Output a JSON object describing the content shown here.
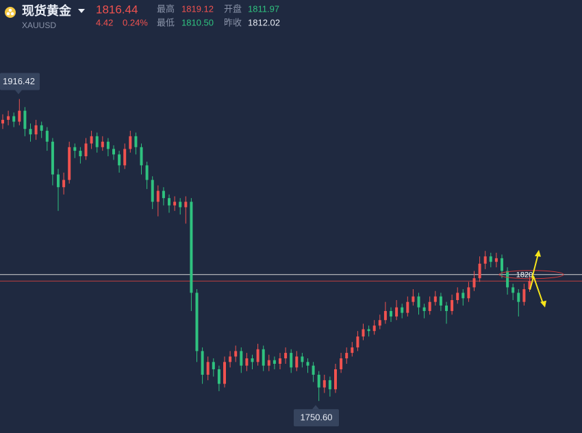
{
  "header": {
    "title": "现货黄金",
    "symbol": "XAUUSD",
    "price": "1816.44",
    "change": "4.42",
    "change_pct": "0.24%",
    "stats": [
      {
        "label": "最高",
        "value": "1819.12"
      },
      {
        "label": "开盘",
        "value": "1811.97"
      },
      {
        "label": "最低",
        "value": "1810.50"
      },
      {
        "label": "昨收",
        "value": "1812.02"
      }
    ]
  },
  "chart_data": {
    "type": "candlestick",
    "up_color": "#f0524f",
    "down_color": "#2fc27f",
    "ylim": [
      1733,
      1952
    ],
    "open": [
      1903,
      1905,
      1907,
      1904,
      1910,
      1900,
      1897,
      1902,
      1899,
      1893,
      1875,
      1868,
      1872,
      1890,
      1888,
      1885,
      1892,
      1896,
      1890,
      1893,
      1889,
      1886,
      1880,
      1889,
      1896,
      1890,
      1880,
      1872,
      1860,
      1866,
      1862,
      1858,
      1860,
      1857,
      1860,
      1810,
      1778,
      1765,
      1772,
      1768,
      1760,
      1772,
      1775,
      1778,
      1770,
      1774,
      1772,
      1779,
      1770,
      1773,
      1771,
      1774,
      1777,
      1769,
      1775,
      1772,
      1770,
      1765,
      1758,
      1762,
      1757,
      1768,
      1774,
      1777,
      1780,
      1786,
      1790,
      1789,
      1792,
      1795,
      1800,
      1797,
      1802,
      1799,
      1805,
      1808,
      1802,
      1800,
      1805,
      1808,
      1803,
      1800,
      1806,
      1810,
      1807,
      1813,
      1818,
      1826,
      1830,
      1827,
      1829,
      1822,
      1813,
      1810,
      1805,
      1812
    ],
    "high": [
      1908,
      1910,
      1909,
      1916.42,
      1912,
      1903,
      1905,
      1904,
      1901,
      1895,
      1878,
      1876,
      1893,
      1892,
      1890,
      1895,
      1899,
      1898,
      1896,
      1895,
      1891,
      1888,
      1892,
      1899,
      1898,
      1892,
      1882,
      1874,
      1869,
      1868,
      1864,
      1863,
      1862,
      1863,
      1862,
      1812,
      1780,
      1775,
      1774,
      1770,
      1775,
      1778,
      1781,
      1780,
      1777,
      1776,
      1782,
      1781,
      1776,
      1775,
      1777,
      1780,
      1779,
      1778,
      1777,
      1774,
      1772,
      1767,
      1765,
      1764,
      1771,
      1777,
      1780,
      1783,
      1789,
      1793,
      1792,
      1795,
      1798,
      1805,
      1802,
      1806,
      1804,
      1808,
      1812,
      1810,
      1804,
      1808,
      1811,
      1810,
      1805,
      1809,
      1813,
      1812,
      1816,
      1822,
      1830,
      1833,
      1832,
      1832,
      1831,
      1824,
      1815,
      1812,
      1815,
      1819.12
    ],
    "low": [
      1900,
      1902,
      1901,
      1902,
      1896,
      1893,
      1894,
      1895,
      1888,
      1869,
      1855,
      1864,
      1870,
      1884,
      1881,
      1883,
      1889,
      1887,
      1888,
      1885,
      1883,
      1876,
      1878,
      1887,
      1886,
      1875,
      1867,
      1856,
      1852,
      1858,
      1854,
      1855,
      1853,
      1848,
      1800,
      1772,
      1760,
      1762,
      1764,
      1756,
      1758,
      1769,
      1772,
      1766,
      1767,
      1768,
      1770,
      1767,
      1767,
      1768,
      1768,
      1771,
      1766,
      1767,
      1769,
      1766,
      1761,
      1750.6,
      1755,
      1753,
      1755,
      1766,
      1771,
      1775,
      1778,
      1784,
      1786,
      1787,
      1790,
      1793,
      1794,
      1795,
      1796,
      1797,
      1803,
      1798,
      1796,
      1798,
      1803,
      1800,
      1793,
      1798,
      1804,
      1803,
      1805,
      1811,
      1816,
      1823,
      1824,
      1824,
      1818,
      1809,
      1806,
      1797,
      1803,
      1810.5
    ],
    "close": [
      1905,
      1907,
      1904,
      1910,
      1900,
      1897,
      1902,
      1899,
      1893,
      1875,
      1868,
      1872,
      1890,
      1888,
      1885,
      1892,
      1896,
      1890,
      1893,
      1889,
      1886,
      1880,
      1889,
      1896,
      1890,
      1880,
      1872,
      1860,
      1866,
      1862,
      1858,
      1860,
      1857,
      1860,
      1810,
      1778,
      1765,
      1772,
      1768,
      1760,
      1772,
      1775,
      1778,
      1770,
      1774,
      1772,
      1779,
      1770,
      1773,
      1771,
      1774,
      1777,
      1769,
      1775,
      1772,
      1770,
      1765,
      1758,
      1762,
      1757,
      1768,
      1774,
      1777,
      1780,
      1786,
      1790,
      1789,
      1792,
      1795,
      1800,
      1797,
      1802,
      1799,
      1805,
      1808,
      1802,
      1800,
      1805,
      1808,
      1803,
      1800,
      1806,
      1810,
      1807,
      1813,
      1818,
      1826,
      1830,
      1827,
      1829,
      1822,
      1813,
      1810,
      1805,
      1812,
      1816.44
    ],
    "high_marker": {
      "value": 1916.42,
      "label": "1916.42"
    },
    "low_marker": {
      "value": 1750.6,
      "label": "1750.60"
    },
    "level": {
      "value": 1820,
      "label": "1820"
    }
  }
}
